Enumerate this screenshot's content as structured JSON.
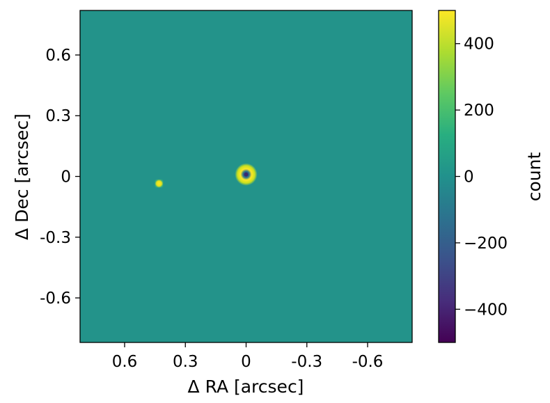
{
  "chart_data": {
    "type": "heatmap",
    "xlabel": "Δ RA [arcsec]",
    "ylabel": "Δ Dec [arcsec]",
    "xlim": [
      0.82,
      -0.82
    ],
    "ylim": [
      -0.82,
      0.82
    ],
    "x_ticks": [
      0.6,
      0.3,
      0,
      -0.3,
      -0.6
    ],
    "x_tick_labels": [
      "0.6",
      "0.3",
      "0",
      "-0.3",
      "-0.6"
    ],
    "y_ticks": [
      0.6,
      0.3,
      0,
      -0.3,
      -0.6
    ],
    "y_tick_labels": [
      "0.6",
      "0.3",
      "0",
      "-0.3",
      "-0.6"
    ],
    "grid": false,
    "background_value": 40,
    "colormap": "viridis",
    "colorbar": {
      "label": "count",
      "range": [
        -500,
        500
      ],
      "ticks": [
        400,
        200,
        0,
        -200,
        -400
      ],
      "tick_labels": [
        "400",
        "200",
        "0",
        "−200",
        "−400"
      ]
    },
    "sources": [
      {
        "name": "central ring",
        "x": 0.0,
        "y": 0.01,
        "ring_value": 480,
        "center_value": -150
      },
      {
        "name": "companion",
        "x": 0.43,
        "y": -0.035,
        "value": 500
      }
    ]
  }
}
